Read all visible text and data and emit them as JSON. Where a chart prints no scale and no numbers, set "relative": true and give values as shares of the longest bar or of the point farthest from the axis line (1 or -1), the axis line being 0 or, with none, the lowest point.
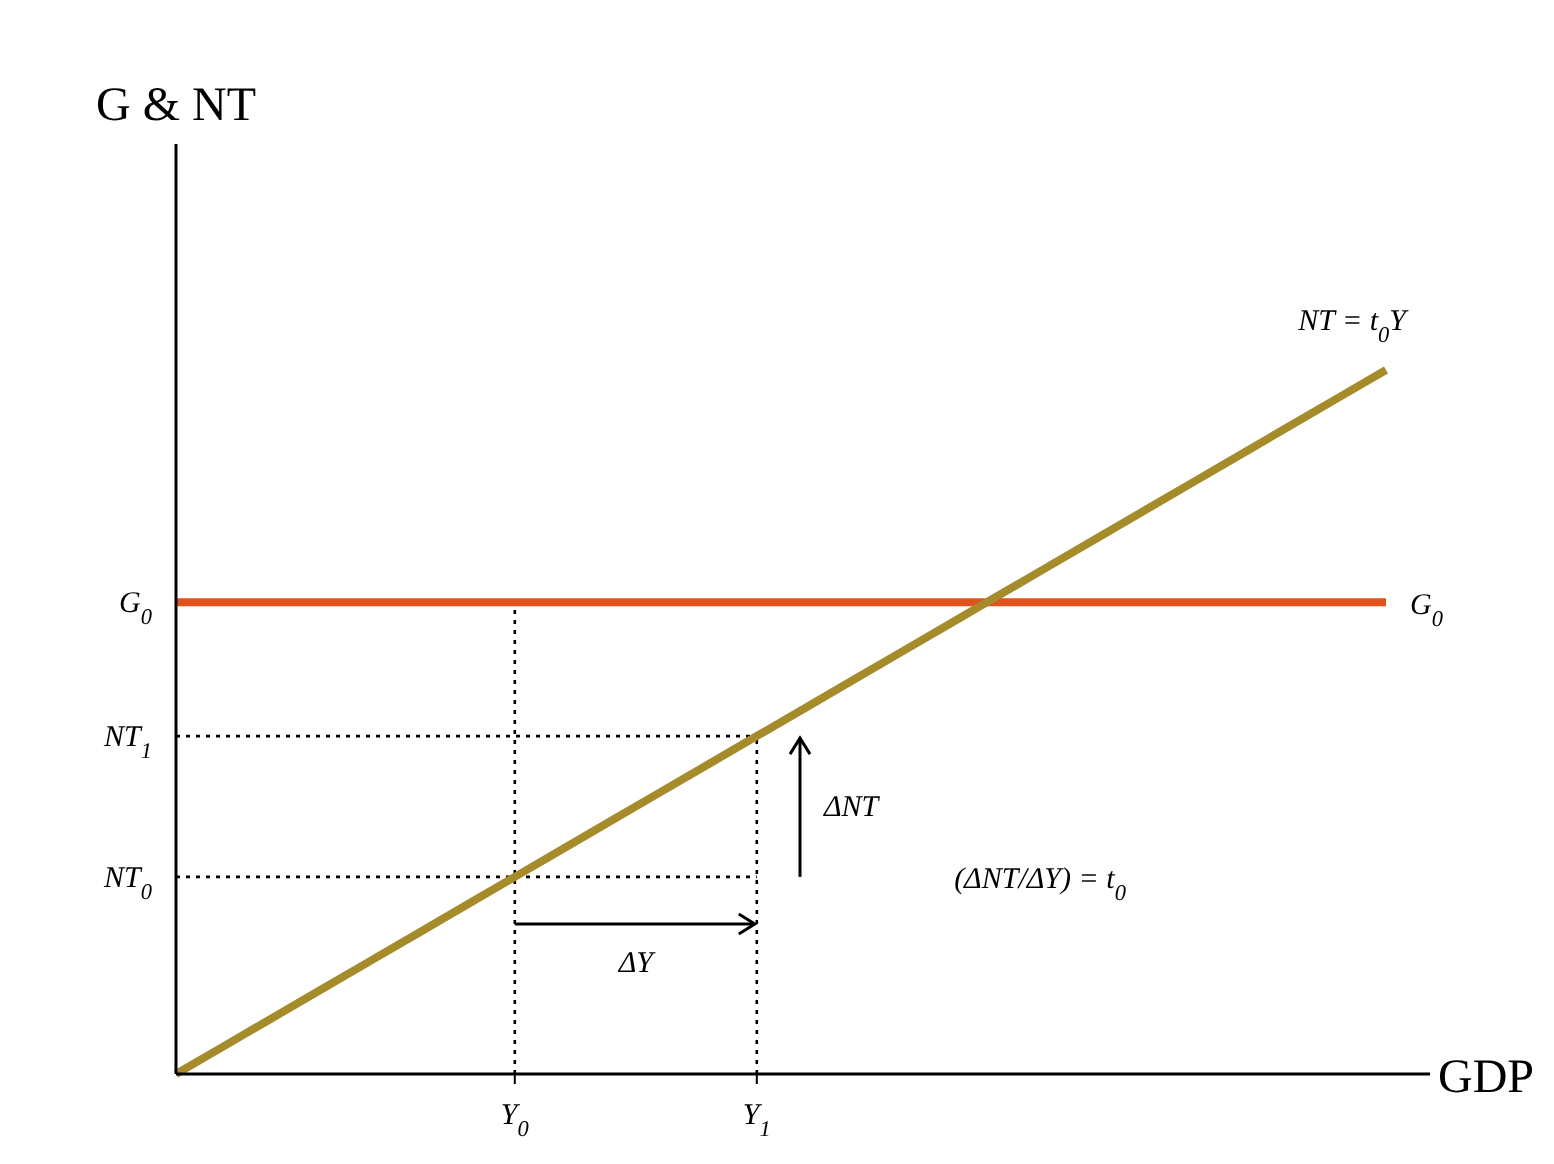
{
  "chart_data": {
    "type": "line",
    "relative": true,
    "xlabel": "GDP",
    "ylabel": "G & NT",
    "categories": [
      null,
      null,
      null,
      null,
      null,
      null,
      null,
      "Y$_{0}$",
      null,
      null,
      null,
      null,
      "Y$_{1}$",
      null,
      null,
      null,
      null,
      null,
      null,
      null,
      null,
      null,
      null,
      null,
      null,
      null
    ],
    "series": [
      {
        "name": "G$_{0}$",
        "color": "#e0521a",
        "values": [
          0.67,
          0.67,
          0.67,
          0.67,
          0.67,
          0.67,
          0.67,
          0.67,
          0.67,
          0.67,
          0.67,
          0.67,
          0.67,
          0.67,
          0.67,
          0.67,
          0.67,
          0.67,
          0.67,
          0.67,
          0.67,
          0.67,
          0.67,
          0.67,
          0.67,
          0.67
        ]
      },
      {
        "name": "NT = t$_{0}$Y",
        "color": "#a68b2a",
        "values": [
          0,
          0.04,
          0.08,
          0.12,
          0.16,
          0.2,
          0.24,
          0.28,
          0.32,
          0.36,
          0.4,
          0.44,
          0.48,
          0.52,
          0.56,
          0.6,
          0.64,
          0.68,
          0.72,
          0.76,
          0.8,
          0.84,
          0.88,
          0.92,
          0.96,
          1
        ]
      }
    ],
    "annotations": [
      "ΔY",
      "ΔNT",
      "(ΔNT/ΔY) = t$_{0}$",
      "G$_{0}$"
    ],
    "ref_lines": [
      {
        "axis": "y",
        "value": 0.28,
        "label": "NT$_{0}$",
        "line_style": "dotted",
        "color": "#000000"
      },
      {
        "axis": "y",
        "value": 0.48,
        "label": "NT$_{1}$",
        "line_style": "dotted",
        "color": "#000000"
      },
      {
        "axis": "x",
        "value": "Y$_{0}$",
        "label": null,
        "line_style": "dotted",
        "color": "#000000"
      },
      {
        "axis": "x",
        "value": "Y$_{1}$",
        "label": null,
        "line_style": "dotted",
        "color": "#000000"
      }
    ],
    "grid": false,
    "marker": "none",
    "line_style": "solid"
  }
}
